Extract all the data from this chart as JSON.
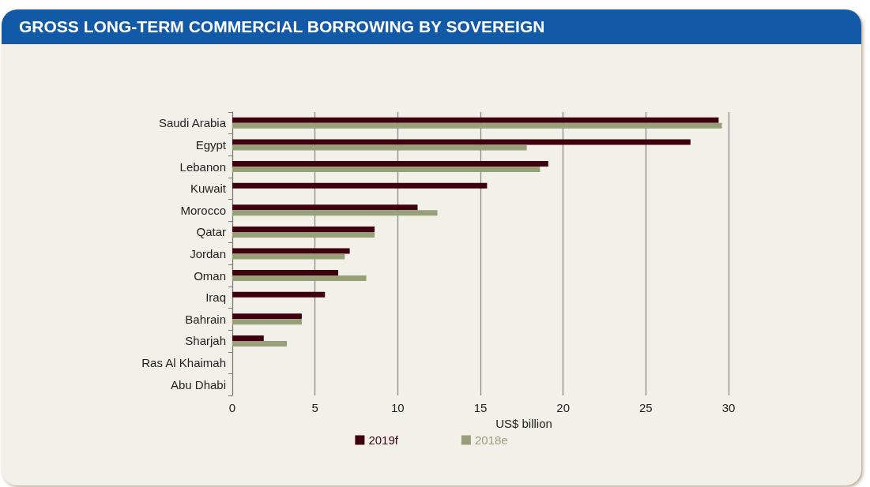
{
  "chart_data": {
    "type": "bar",
    "orientation": "horizontal",
    "title": "GROSS LONG-TERM COMMERCIAL BORROWING BY SOVEREIGN",
    "xlabel": "US$ billion",
    "categories": [
      "Saudi Arabia",
      "Egypt",
      "Lebanon",
      "Kuwait",
      "Morocco",
      "Qatar",
      "Jordan",
      "Oman",
      "Iraq",
      "Bahrain",
      "Sharjah",
      "Ras Al Khaimah",
      "Abu Dhabi"
    ],
    "series": [
      {
        "name": "2019f",
        "color": "#3f0010",
        "values": [
          29.4,
          27.7,
          19.1,
          15.4,
          11.2,
          8.6,
          7.1,
          6.4,
          5.6,
          4.2,
          1.9,
          0,
          0
        ]
      },
      {
        "name": "2018e",
        "color": "#98a07a",
        "values": [
          29.6,
          17.8,
          18.6,
          0,
          12.4,
          8.6,
          6.8,
          8.1,
          0,
          4.2,
          3.3,
          0,
          0
        ]
      }
    ],
    "xlim": [
      0,
      30
    ],
    "xticks": [
      0,
      5,
      10,
      15,
      20,
      25,
      30
    ],
    "grid": "x",
    "legend": "bottom"
  }
}
